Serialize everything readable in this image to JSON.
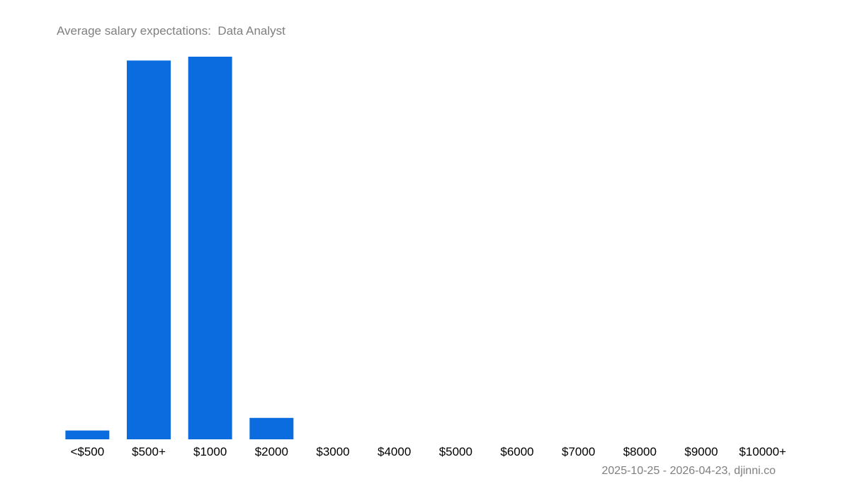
{
  "chart_data": {
    "type": "bar",
    "title": "Average salary expectations:  Data Analyst",
    "categories": [
      "<$500",
      "$500+",
      "$1000",
      "$2000",
      "$3000",
      "$4000",
      "$5000",
      "$6000",
      "$7000",
      "$8000",
      "$9000",
      "$10000+"
    ],
    "values": [
      2.3,
      99,
      100,
      5.6,
      0,
      0,
      0,
      0,
      0,
      0,
      0,
      0
    ],
    "ylim": [
      0,
      100
    ],
    "xlabel": "",
    "ylabel": "",
    "grid": false,
    "legend": "none",
    "bar_color": "#0a6cdf"
  },
  "footer": {
    "note": "2025-10-25 - 2026-04-23, djinni.co"
  }
}
